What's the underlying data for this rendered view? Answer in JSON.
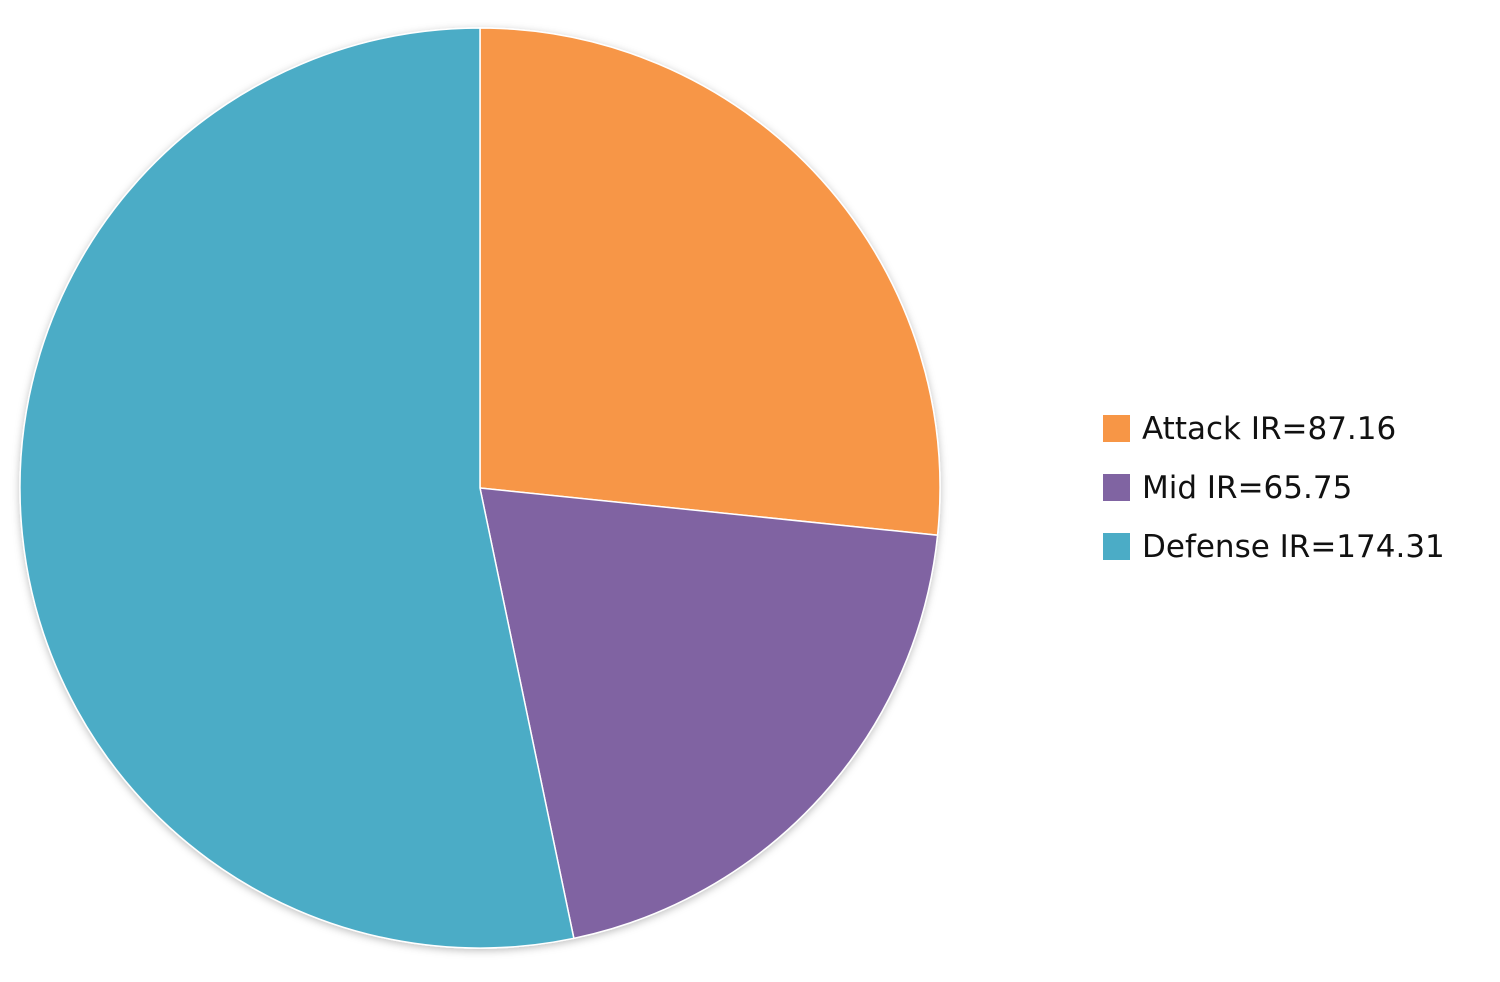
{
  "chart_data": {
    "type": "pie",
    "title": "",
    "categories": [
      "Attack",
      "Mid",
      "Defense"
    ],
    "values": [
      87.16,
      65.75,
      174.31
    ],
    "colors": [
      "#F79646",
      "#8064A2",
      "#4BACC6"
    ],
    "start_angle": "12 o'clock",
    "direction": "clockwise",
    "legend_position": "right",
    "legend": [
      "Attack IR=87.16",
      "Mid IR=65.75",
      "Defense IR=174.31"
    ]
  }
}
